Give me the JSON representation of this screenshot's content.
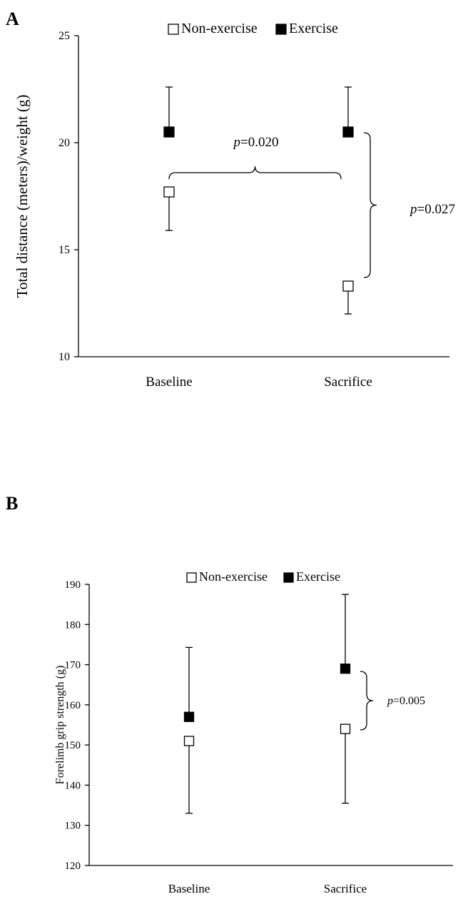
{
  "chart_data": [
    {
      "panel": "A",
      "type": "scatter",
      "title": "",
      "xlabel": "",
      "ylabel": "Total distance (meters)/weight (g)",
      "categories": [
        "Baseline",
        "Sacrifice"
      ],
      "ylim": [
        10,
        25
      ],
      "yticks": [
        "10",
        "15",
        "20",
        "25"
      ],
      "grid": false,
      "legend": {
        "placement": "top-center",
        "entries": [
          "Non-exercise",
          "Exercise"
        ]
      },
      "series": [
        {
          "name": "Non-exercise",
          "marker": "open-square",
          "values": [
            17.7,
            13.3
          ],
          "errors_lower": [
            1.8,
            1.3
          ],
          "errors_upper": [
            0,
            0
          ]
        },
        {
          "name": "Exercise",
          "marker": "filled-square",
          "values": [
            20.5,
            20.5
          ],
          "errors_lower": [
            0,
            0
          ],
          "errors_upper": [
            2.1,
            2.1
          ]
        }
      ],
      "annotations": [
        {
          "p_label": "p",
          "value_label": "=0.020",
          "between": "Non-exercise Baseline vs Non-exercise Sacrifice"
        },
        {
          "p_label": "p",
          "value_label": "=0.027",
          "between": "Non-exercise vs Exercise at Sacrifice"
        }
      ]
    },
    {
      "panel": "B",
      "type": "scatter",
      "title": "",
      "xlabel": "",
      "ylabel": "Forelimb grip strength (g)",
      "categories": [
        "Baseline",
        "Sacrifice"
      ],
      "ylim": [
        120,
        190
      ],
      "yticks": [
        "120",
        "130",
        "140",
        "150",
        "160",
        "170",
        "180",
        "190"
      ],
      "grid": false,
      "legend": {
        "placement": "top-center",
        "entries": [
          "Non-exercise",
          "Exercise"
        ]
      },
      "series": [
        {
          "name": "Non-exercise",
          "marker": "open-square",
          "values": [
            151,
            154
          ],
          "errors_lower": [
            18,
            18.5
          ],
          "errors_upper": [
            0,
            0
          ]
        },
        {
          "name": "Exercise",
          "marker": "filled-square",
          "values": [
            157,
            169
          ],
          "errors_lower": [
            0,
            0
          ],
          "errors_upper": [
            17.3,
            18.5
          ]
        }
      ],
      "annotations": [
        {
          "p_label": "p",
          "value_label": "=0.005",
          "between": "Non-exercise vs Exercise at Sacrifice"
        }
      ]
    }
  ],
  "colors": {
    "axis": "#000000",
    "filled_marker": "#000000",
    "open_marker_fill": "#ffffff"
  }
}
